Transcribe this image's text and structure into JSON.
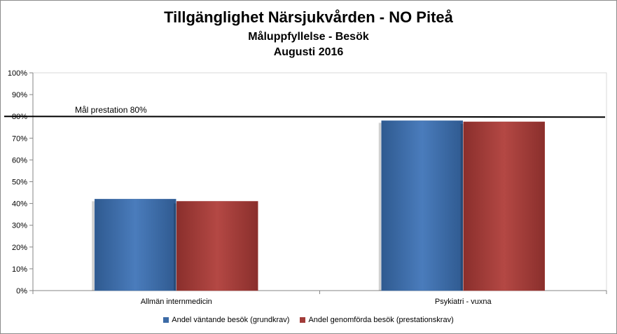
{
  "chart_data": {
    "type": "bar",
    "title": "Tillgänglighet Närsjukvården - NO Piteå",
    "subtitle": "Måluppfyllelse - Besök",
    "period": "Augusti 2016",
    "categories": [
      "Allmän internmedicin",
      "Psykiatri - vuxna"
    ],
    "series": [
      {
        "name": "Andel väntande besök (grundkrav)",
        "values": [
          42,
          78
        ],
        "color": "#3d6ba6"
      },
      {
        "name": "Andel genomförda besök (prestationskrav)",
        "values": [
          41,
          77.5
        ],
        "color": "#a23c39"
      }
    ],
    "ylim": [
      0,
      100
    ],
    "yticks": [
      "0%",
      "10%",
      "20%",
      "30%",
      "40%",
      "50%",
      "60%",
      "70%",
      "80%",
      "90%",
      "100%"
    ],
    "reference_line": {
      "value": 80,
      "label": "Mål prestation  80%"
    },
    "legend_position": "bottom",
    "grid": false
  }
}
